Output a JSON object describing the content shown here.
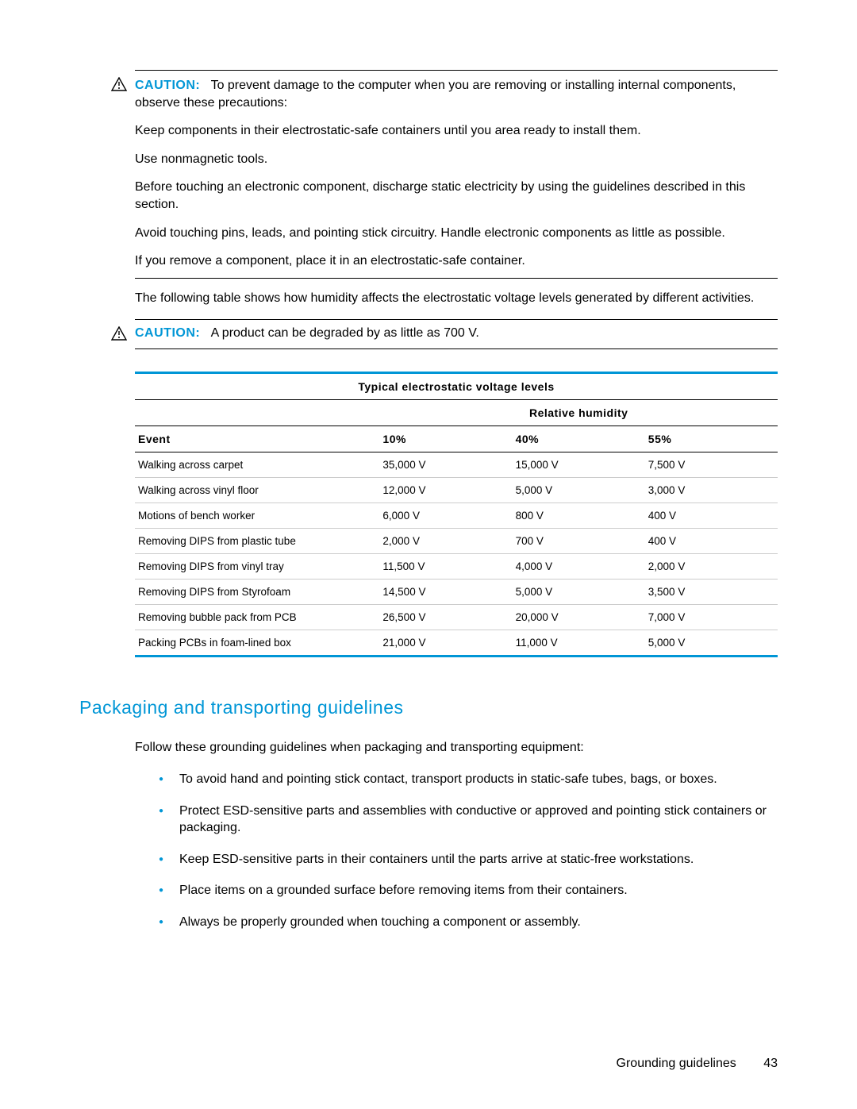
{
  "colors": {
    "accent": "#0096d6",
    "text": "#000000",
    "bg": "#ffffff",
    "row_border": "#cccccc"
  },
  "caution1": {
    "label": "CAUTION:",
    "p1": "To prevent damage to the computer when you are removing or installing internal components, observe these precautions:",
    "p2": "Keep components in their electrostatic-safe containers until you area ready to install them.",
    "p3": "Use nonmagnetic tools.",
    "p4": "Before touching an electronic component, discharge static electricity by using the guidelines described in this section.",
    "p5": "Avoid touching pins, leads, and pointing stick circuitry. Handle electronic components as little as possible.",
    "p6": "If you remove a component, place it in an electrostatic-safe container."
  },
  "transition_para": "The following table shows how humidity affects the electrostatic voltage levels generated by different activities.",
  "caution2": {
    "label": "CAUTION:",
    "text": "A product can be degraded by as little as 700 V."
  },
  "table": {
    "title": "Typical electrostatic voltage levels",
    "rh_label": "Relative humidity",
    "columns": [
      "Event",
      "10%",
      "40%",
      "55%"
    ],
    "rows": [
      [
        "Walking across carpet",
        "35,000 V",
        "15,000 V",
        "7,500 V"
      ],
      [
        "Walking across vinyl floor",
        "12,000 V",
        "5,000 V",
        "3,000 V"
      ],
      [
        "Motions of bench worker",
        "6,000 V",
        "800 V",
        "400 V"
      ],
      [
        "Removing DIPS from plastic tube",
        "2,000 V",
        "700 V",
        "400 V"
      ],
      [
        "Removing DIPS from vinyl tray",
        "11,500 V",
        "4,000 V",
        "2,000 V"
      ],
      [
        "Removing DIPS from Styrofoam",
        "14,500 V",
        "5,000 V",
        "3,500 V"
      ],
      [
        "Removing bubble pack from PCB",
        "26,500 V",
        "20,000 V",
        "7,000 V"
      ],
      [
        "Packing PCBs in foam-lined box",
        "21,000 V",
        "11,000 V",
        "5,000 V"
      ]
    ]
  },
  "section_heading": "Packaging and transporting guidelines",
  "section_intro": "Follow these grounding guidelines when packaging and transporting equipment:",
  "bullets": [
    "To avoid hand and pointing stick contact, transport products in static-safe tubes, bags, or boxes.",
    "Protect ESD-sensitive parts and assemblies with conductive or approved and pointing stick containers or packaging.",
    "Keep ESD-sensitive parts in their containers until the parts arrive at static-free workstations.",
    "Place items on a grounded surface before removing items from their containers.",
    "Always be properly grounded when touching a component or assembly."
  ],
  "footer": {
    "section": "Grounding guidelines",
    "page": "43"
  }
}
